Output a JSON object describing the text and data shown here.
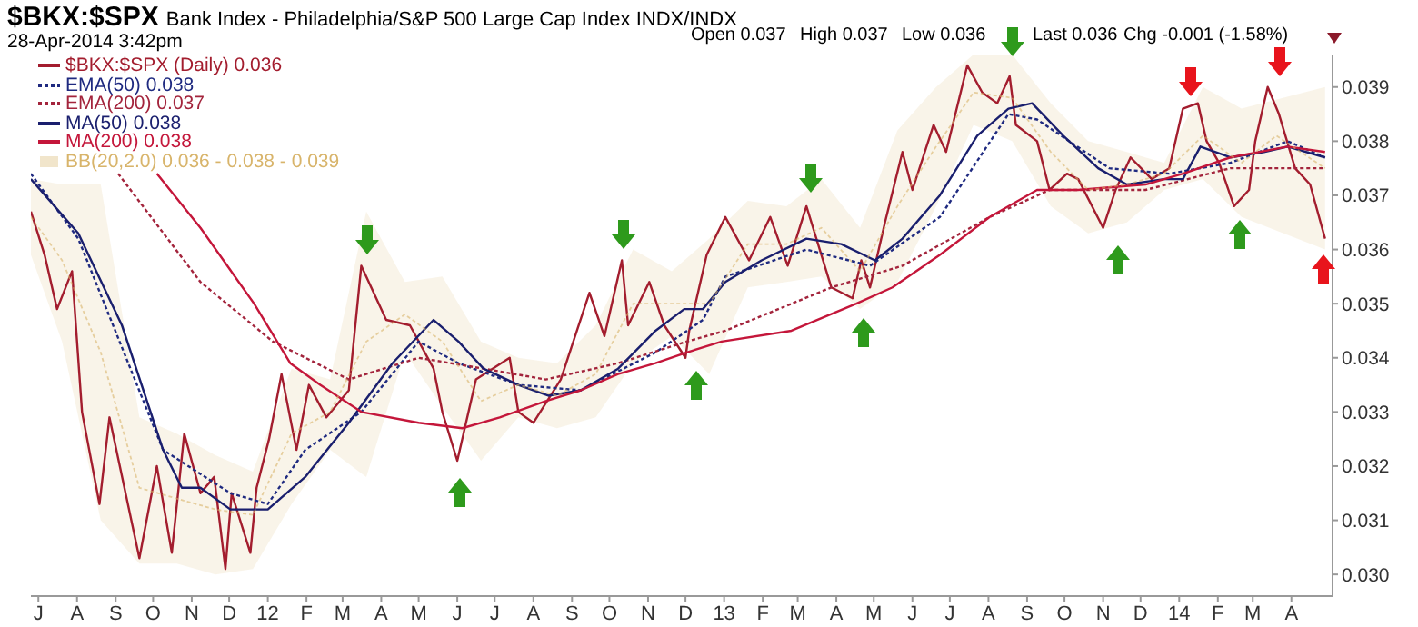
{
  "chart_data": {
    "type": "line",
    "title": "$BKX:$SPX",
    "subtitle": "Bank Index - Philadelphia/S&P 500 Large Cap Index  INDX/INDX",
    "annotations": [
      "28-Apr-2014 3:42pm",
      "Open 0.037",
      "High 0.037",
      "Low 0.036",
      "Last 0.036",
      "Chg -0.001 (-1.58%)"
    ],
    "xlim": [
      "2011-06-25",
      "2014-05-04"
    ],
    "xticks": [
      {
        "value": "2011-07",
        "label": "J"
      },
      {
        "value": "2011-08",
        "label": "A"
      },
      {
        "value": "2011-09",
        "label": "S"
      },
      {
        "value": "2011-10",
        "label": "O"
      },
      {
        "value": "2011-11",
        "label": "N"
      },
      {
        "value": "2011-12",
        "label": "D"
      },
      {
        "value": "2012-01",
        "label": "12"
      },
      {
        "value": "2012-02",
        "label": "F"
      },
      {
        "value": "2012-03",
        "label": "M"
      },
      {
        "value": "2012-04",
        "label": "A"
      },
      {
        "value": "2012-05",
        "label": "M"
      },
      {
        "value": "2012-06",
        "label": "J"
      },
      {
        "value": "2012-07",
        "label": "J"
      },
      {
        "value": "2012-08",
        "label": "A"
      },
      {
        "value": "2012-09",
        "label": "S"
      },
      {
        "value": "2012-10",
        "label": "O"
      },
      {
        "value": "2012-11",
        "label": "N"
      },
      {
        "value": "2012-12",
        "label": "D"
      },
      {
        "value": "2013-01",
        "label": "13"
      },
      {
        "value": "2013-02",
        "label": "F"
      },
      {
        "value": "2013-03",
        "label": "M"
      },
      {
        "value": "2013-04",
        "label": "A"
      },
      {
        "value": "2013-05",
        "label": "M"
      },
      {
        "value": "2013-06",
        "label": "J"
      },
      {
        "value": "2013-07",
        "label": "J"
      },
      {
        "value": "2013-08",
        "label": "A"
      },
      {
        "value": "2013-09",
        "label": "S"
      },
      {
        "value": "2013-10",
        "label": "O"
      },
      {
        "value": "2013-11",
        "label": "N"
      },
      {
        "value": "2013-12",
        "label": "D"
      },
      {
        "value": "2014-01",
        "label": "14"
      },
      {
        "value": "2014-02",
        "label": "F"
      },
      {
        "value": "2014-03",
        "label": "M"
      },
      {
        "value": "2014-04",
        "label": "A"
      }
    ],
    "ylim": [
      0.0296,
      0.0396
    ],
    "yticks": [
      {
        "value": 0.03,
        "label": "0.030"
      },
      0.031,
      0.032,
      0.033,
      0.034,
      0.035,
      0.036,
      0.037,
      0.038,
      0.039
    ],
    "legend": "top left",
    "series": [
      {
        "name": "$BKX:$SPX (Daily) 0.036",
        "color": "#a31d2e",
        "x": [
          "2011-06-25",
          "2011-07-06",
          "2011-07-16",
          "2011-07-28",
          "2011-08-05",
          "2011-08-19",
          "2011-08-27",
          "2011-09-20",
          "2011-10-04",
          "2011-10-16",
          "2011-10-26",
          "2011-11-08",
          "2011-11-19",
          "2011-11-28",
          "2011-12-03",
          "2011-12-18",
          "2011-12-23",
          "2012-01-02",
          "2012-01-12",
          "2012-01-24",
          "2012-02-03",
          "2012-02-17",
          "2012-03-06",
          "2012-03-16",
          "2012-04-05",
          "2012-04-24",
          "2012-05-13",
          "2012-05-20",
          "2012-06-01",
          "2012-06-16",
          "2012-07-13",
          "2012-07-20",
          "2012-08-01",
          "2012-08-23",
          "2012-09-15",
          "2012-09-27",
          "2012-10-11",
          "2012-10-16",
          "2012-11-02",
          "2012-11-14",
          "2012-12-01",
          "2012-12-04",
          "2012-12-18",
          "2013-01-02",
          "2013-01-21",
          "2013-02-07",
          "2013-02-21",
          "2013-03-08",
          "2013-03-28",
          "2013-04-14",
          "2013-04-21",
          "2013-04-28",
          "2013-05-10",
          "2013-05-24",
          "2013-06-01",
          "2013-06-18",
          "2013-06-28",
          "2013-07-15",
          "2013-07-27",
          "2013-08-08",
          "2013-08-18",
          "2013-08-23",
          "2013-09-09",
          "2013-09-19",
          "2013-10-03",
          "2013-10-12",
          "2013-11-01",
          "2013-11-11",
          "2013-11-23",
          "2013-12-10",
          "2013-12-24",
          "2014-01-04",
          "2014-01-16",
          "2014-01-23",
          "2014-02-02",
          "2014-02-14",
          "2014-02-26",
          "2014-03-03",
          "2014-03-13",
          "2014-03-22",
          "2014-04-04",
          "2014-04-16",
          "2014-04-28"
        ],
        "values": [
          0.0367,
          0.0359,
          0.0349,
          0.0356,
          0.033,
          0.0313,
          0.0329,
          0.0303,
          0.032,
          0.0304,
          0.0326,
          0.0315,
          0.0318,
          0.0301,
          0.0315,
          0.0304,
          0.0316,
          0.0325,
          0.0337,
          0.0323,
          0.0335,
          0.0329,
          0.0334,
          0.0357,
          0.0347,
          0.0346,
          0.0338,
          0.033,
          0.0321,
          0.0336,
          0.034,
          0.033,
          0.0328,
          0.0336,
          0.0352,
          0.0344,
          0.0358,
          0.0346,
          0.0354,
          0.0346,
          0.034,
          0.0345,
          0.0359,
          0.0366,
          0.0358,
          0.0366,
          0.0357,
          0.0368,
          0.0353,
          0.0351,
          0.0358,
          0.0353,
          0.0365,
          0.0378,
          0.0371,
          0.0383,
          0.0378,
          0.0394,
          0.0389,
          0.0387,
          0.0392,
          0.0383,
          0.038,
          0.0371,
          0.0374,
          0.0373,
          0.0364,
          0.0371,
          0.0377,
          0.0373,
          0.0375,
          0.0386,
          0.0387,
          0.038,
          0.0376,
          0.0368,
          0.0371,
          0.038,
          0.039,
          0.0385,
          0.0375,
          0.0372,
          0.0362
        ]
      },
      {
        "name": "EMA(50) 0.038",
        "line_style": "dotted",
        "color": "#1f2a80",
        "x": [
          "2011-06-25",
          "2011-08-02",
          "2011-10-09",
          "2011-12-02",
          "2012-01-01",
          "2012-01-31",
          "2012-03-16",
          "2012-05-01",
          "2012-06-02",
          "2012-07-20",
          "2012-09-08",
          "2012-11-07",
          "2012-12-15",
          "2013-01-02",
          "2013-03-08",
          "2013-04-28",
          "2013-06-23",
          "2013-08-17",
          "2013-09-09",
          "2013-11-06",
          "2013-12-24",
          "2014-02-11",
          "2014-03-29",
          "2014-04-28"
        ],
        "values": [
          0.0374,
          0.0362,
          0.0323,
          0.0315,
          0.0313,
          0.0323,
          0.033,
          0.0343,
          0.0339,
          0.0335,
          0.0334,
          0.0341,
          0.0347,
          0.0355,
          0.036,
          0.0357,
          0.0366,
          0.0385,
          0.0384,
          0.0375,
          0.0374,
          0.0376,
          0.038,
          0.0377
        ]
      },
      {
        "name": "EMA(200) 0.037",
        "line_style": "dotted",
        "color": "#a3243c",
        "x": [
          "2011-09-03",
          "2011-11-08",
          "2012-01-05",
          "2012-03-06",
          "2012-05-01",
          "2012-06-22",
          "2012-08-11",
          "2012-10-08",
          "2012-12-02",
          "2013-01-02",
          "2013-03-28",
          "2013-05-24",
          "2013-08-02",
          "2013-09-19",
          "2013-12-05",
          "2014-02-11",
          "2014-04-28"
        ],
        "values": [
          0.0374,
          0.0354,
          0.0343,
          0.0336,
          0.034,
          0.0338,
          0.0336,
          0.0339,
          0.0343,
          0.0345,
          0.0353,
          0.0357,
          0.0366,
          0.0371,
          0.0371,
          0.0375,
          0.0375
        ]
      },
      {
        "name": "MA(50) 0.038",
        "color": "#1a1f6e",
        "x": [
          "2011-06-25",
          "2011-08-02",
          "2011-09-06",
          "2011-10-09",
          "2011-10-24",
          "2011-11-08",
          "2011-12-02",
          "2012-01-01",
          "2012-01-31",
          "2012-03-06",
          "2012-04-10",
          "2012-05-13",
          "2012-06-02",
          "2012-06-22",
          "2012-07-20",
          "2012-08-13",
          "2012-09-08",
          "2012-10-08",
          "2012-11-07",
          "2012-11-30",
          "2012-12-15",
          "2013-01-02",
          "2013-01-31",
          "2013-03-08",
          "2013-04-05",
          "2013-05-02",
          "2013-05-24",
          "2013-06-23",
          "2013-07-23",
          "2013-08-17",
          "2013-09-05",
          "2013-09-30",
          "2013-10-28",
          "2013-11-20",
          "2013-12-20",
          "2014-01-04",
          "2014-01-18",
          "2014-02-11",
          "2014-03-10",
          "2014-03-29",
          "2014-04-28"
        ],
        "values": [
          0.0373,
          0.0363,
          0.0346,
          0.0323,
          0.0316,
          0.0316,
          0.0312,
          0.0312,
          0.0318,
          0.0328,
          0.0339,
          0.0347,
          0.0343,
          0.0338,
          0.0335,
          0.0333,
          0.0334,
          0.0338,
          0.0345,
          0.0349,
          0.0349,
          0.0354,
          0.0358,
          0.0362,
          0.0361,
          0.0358,
          0.0362,
          0.037,
          0.0381,
          0.0386,
          0.0387,
          0.0381,
          0.0375,
          0.0372,
          0.0373,
          0.0373,
          0.0379,
          0.0377,
          0.0378,
          0.0379,
          0.0377
        ]
      },
      {
        "name": "MA(200) 0.038",
        "color": "#c4163a",
        "x": [
          "2011-10-04",
          "2011-11-08",
          "2011-12-21",
          "2012-01-19",
          "2012-02-12",
          "2012-03-16",
          "2012-05-01",
          "2012-06-05",
          "2012-07-05",
          "2012-08-11",
          "2012-09-08",
          "2012-10-08",
          "2012-11-07",
          "2012-12-02",
          "2012-12-30",
          "2013-02-24",
          "2013-04-17",
          "2013-05-16",
          "2013-06-23",
          "2013-08-02",
          "2013-09-09",
          "2013-10-12",
          "2013-12-05",
          "2014-01-04",
          "2014-02-11",
          "2014-03-29",
          "2014-04-28"
        ],
        "values": [
          0.0374,
          0.0364,
          0.035,
          0.0339,
          0.0335,
          0.033,
          0.0328,
          0.0327,
          0.0329,
          0.0332,
          0.0334,
          0.0337,
          0.0339,
          0.0341,
          0.0343,
          0.0345,
          0.035,
          0.0353,
          0.0359,
          0.0366,
          0.0371,
          0.0371,
          0.0372,
          0.0374,
          0.0377,
          0.0379,
          0.0378
        ]
      },
      {
        "name": "BB(20,2.0) 0.036 - 0.038 - 0.039",
        "line_style": "dotted",
        "color": "#d8b46a",
        "x": [
          "2011-06-25",
          "2011-07-20",
          "2011-08-20",
          "2011-09-20",
          "2011-10-20",
          "2011-11-20",
          "2011-12-20",
          "2012-01-20",
          "2012-02-20",
          "2012-03-20",
          "2012-04-20",
          "2012-05-20",
          "2012-06-20",
          "2012-07-20",
          "2012-08-20",
          "2012-09-20",
          "2012-10-20",
          "2012-11-20",
          "2012-12-20",
          "2013-01-20",
          "2013-02-20",
          "2013-03-20",
          "2013-04-20",
          "2013-05-20",
          "2013-06-20",
          "2013-07-20",
          "2013-08-20",
          "2013-09-20",
          "2013-10-20",
          "2013-11-20",
          "2013-12-20",
          "2014-01-20",
          "2014-02-20",
          "2014-03-20",
          "2014-04-28"
        ],
        "values": [
          0.0366,
          0.0358,
          0.0341,
          0.0316,
          0.0314,
          0.0312,
          0.0311,
          0.0326,
          0.033,
          0.0343,
          0.0348,
          0.0343,
          0.0332,
          0.0335,
          0.0333,
          0.0337,
          0.035,
          0.035,
          0.035,
          0.0361,
          0.0361,
          0.0364,
          0.0356,
          0.0368,
          0.0379,
          0.0389,
          0.0388,
          0.0378,
          0.0371,
          0.0372,
          0.0374,
          0.0381,
          0.0376,
          0.0381,
          0.0375
        ],
        "lower": [
          0.0359,
          0.0343,
          0.031,
          0.0302,
          0.0302,
          0.03,
          0.0301,
          0.0313,
          0.0323,
          0.0318,
          0.0341,
          0.0331,
          0.0321,
          0.0329,
          0.0327,
          0.0329,
          0.0339,
          0.0344,
          0.0337,
          0.0353,
          0.0354,
          0.0355,
          0.0349,
          0.0354,
          0.0368,
          0.0383,
          0.038,
          0.0368,
          0.0363,
          0.0365,
          0.0371,
          0.0373,
          0.0366,
          null,
          0.036
        ],
        "upper": [
          0.0373,
          0.0372,
          0.0372,
          0.0329,
          0.0326,
          0.0322,
          0.0319,
          0.0338,
          0.0336,
          0.0367,
          0.0354,
          0.0355,
          0.0343,
          0.034,
          0.0339,
          0.0346,
          0.036,
          0.0356,
          0.0362,
          0.0369,
          0.0368,
          0.0373,
          0.0364,
          0.0382,
          0.039,
          0.0396,
          0.0396,
          0.0387,
          0.038,
          0.0378,
          0.0376,
          0.039,
          0.0386,
          null,
          0.039
        ]
      }
    ]
  }
}
